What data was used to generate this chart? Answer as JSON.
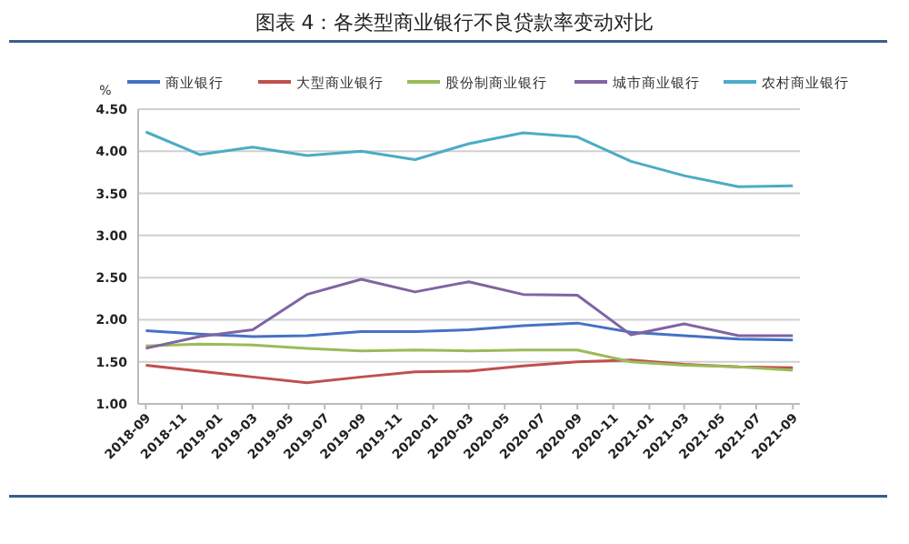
{
  "chart_data": {
    "type": "line",
    "title": "图表 4：各类型商业银行不良贷款率变动对比",
    "ylabel": "%",
    "x": [
      "2018-09",
      "2018-12",
      "2019-03",
      "2019-06",
      "2019-09",
      "2019-12",
      "2020-03",
      "2020-06",
      "2020-09",
      "2020-12",
      "2021-03",
      "2021-06",
      "2021-09"
    ],
    "series": [
      {
        "name": "商业银行",
        "color": "#4472c4",
        "values": [
          1.87,
          1.83,
          1.8,
          1.81,
          1.86,
          1.86,
          1.88,
          1.93,
          1.96,
          1.85,
          1.81,
          1.77,
          1.76
        ]
      },
      {
        "name": "大型商业银行",
        "color": "#c0504d",
        "values": [
          1.46,
          1.39,
          1.32,
          1.25,
          1.32,
          1.38,
          1.39,
          1.45,
          1.5,
          1.52,
          1.47,
          1.44,
          1.43
        ]
      },
      {
        "name": "股份制商业银行",
        "color": "#9bbb59",
        "values": [
          1.69,
          1.71,
          1.7,
          1.66,
          1.63,
          1.64,
          1.63,
          1.64,
          1.64,
          1.5,
          1.46,
          1.44,
          1.4
        ]
      },
      {
        "name": "城市商业银行",
        "color": "#8064a2",
        "values": [
          1.66,
          1.8,
          1.88,
          2.3,
          2.48,
          2.33,
          2.45,
          2.3,
          2.29,
          1.82,
          1.95,
          1.81,
          1.81
        ]
      },
      {
        "name": "农村商业银行",
        "color": "#4bacc6",
        "values": [
          4.23,
          3.96,
          4.05,
          3.95,
          4.0,
          3.9,
          4.09,
          4.22,
          4.17,
          3.88,
          3.71,
          3.58,
          3.59
        ]
      }
    ],
    "xlim": [
      "2018-08-19",
      "2021-09-13"
    ],
    "xticks": [
      "2018-09",
      "2018-11",
      "2019-01",
      "2019-03",
      "2019-05",
      "2019-07",
      "2019-09",
      "2019-11",
      "2020-01",
      "2020-03",
      "2020-05",
      "2020-07",
      "2020-09",
      "2020-11",
      "2021-01",
      "2021-03",
      "2021-05",
      "2021-07",
      "2021-09"
    ],
    "ylim": [
      1,
      4.5
    ],
    "yticks": [
      {
        "value": 1,
        "label": "1.00"
      },
      {
        "value": 1.5,
        "label": "1.50"
      },
      {
        "value": 2,
        "label": "2.00"
      },
      {
        "value": 2.5,
        "label": "2.50"
      },
      {
        "value": 3,
        "label": "3.00"
      },
      {
        "value": 3.5,
        "label": "3.50"
      },
      {
        "value": 4,
        "label": "4.00"
      },
      {
        "value": 4.5,
        "label": "4.50"
      }
    ],
    "grid": "y",
    "legend": "top",
    "marker": "none",
    "line_style": "solid"
  }
}
